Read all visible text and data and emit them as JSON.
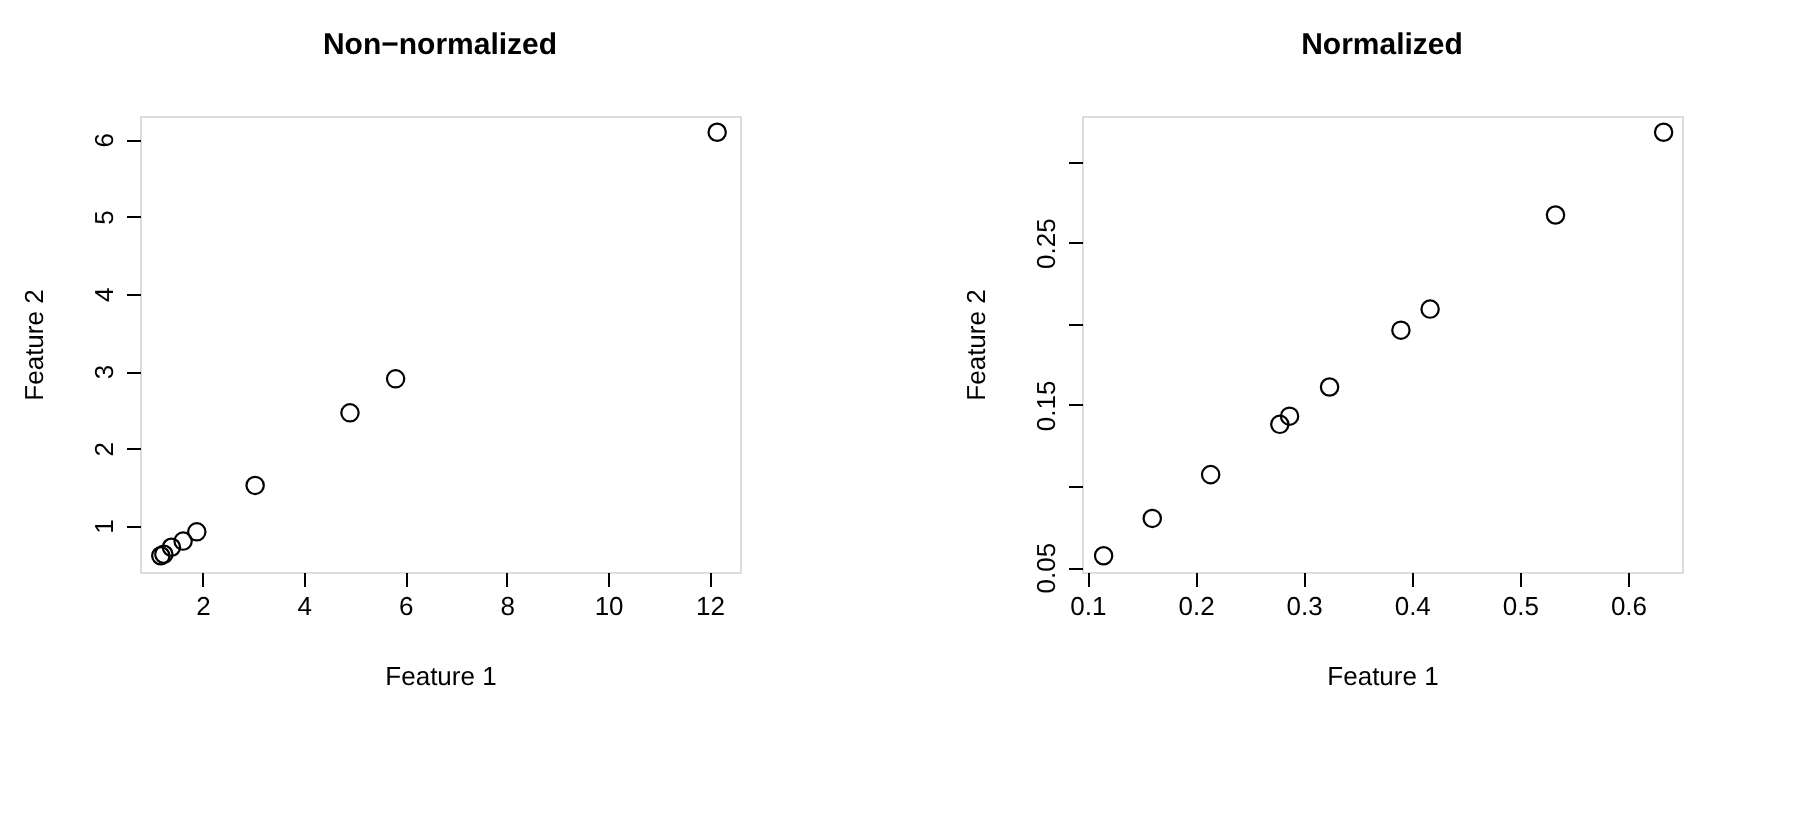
{
  "chart_data": [
    {
      "type": "scatter",
      "title": "Non−normalized",
      "xlabel": "Feature 1",
      "ylabel": "Feature 2",
      "marker": "circle",
      "grid": false,
      "legend": false,
      "x": [
        1.18,
        1.24,
        1.39,
        1.62,
        1.89,
        3.04,
        4.91,
        5.81,
        12.15
      ],
      "series": [
        {
          "color": "#000000",
          "values": [
            0.61,
            0.63,
            0.72,
            0.8,
            0.92,
            1.52,
            2.46,
            2.9,
            6.09
          ]
        }
      ],
      "xlim": [
        0.77,
        12.6
      ],
      "ylim": [
        0.4,
        6.3
      ],
      "xticks": [
        2,
        4,
        6,
        8,
        10,
        12
      ],
      "yticks": [
        1,
        2,
        3,
        4,
        5,
        6
      ]
    },
    {
      "type": "scatter",
      "title": "Normalized",
      "xlabel": "Feature 1",
      "ylabel": "Feature 2",
      "marker": "circle",
      "grid": false,
      "legend": false,
      "x": [
        0.115,
        0.16,
        0.214,
        0.278,
        0.287,
        0.324,
        0.39,
        0.417,
        0.533,
        0.633
      ],
      "series": [
        {
          "color": "#000000",
          "values": [
            0.057,
            0.08,
            0.107,
            0.138,
            0.143,
            0.161,
            0.196,
            0.209,
            0.267,
            0.318
          ]
        }
      ],
      "xlim": [
        0.095,
        0.65
      ],
      "ylim": [
        0.047,
        0.328
      ],
      "xticks": [
        0.1,
        0.2,
        0.3,
        0.4,
        0.5,
        0.6
      ],
      "yticks": [
        0.05,
        {
          "value": 0.1,
          "label": null
        },
        0.15,
        {
          "value": 0.2,
          "label": null
        },
        0.25,
        {
          "value": 0.3,
          "label": null
        }
      ]
    }
  ]
}
